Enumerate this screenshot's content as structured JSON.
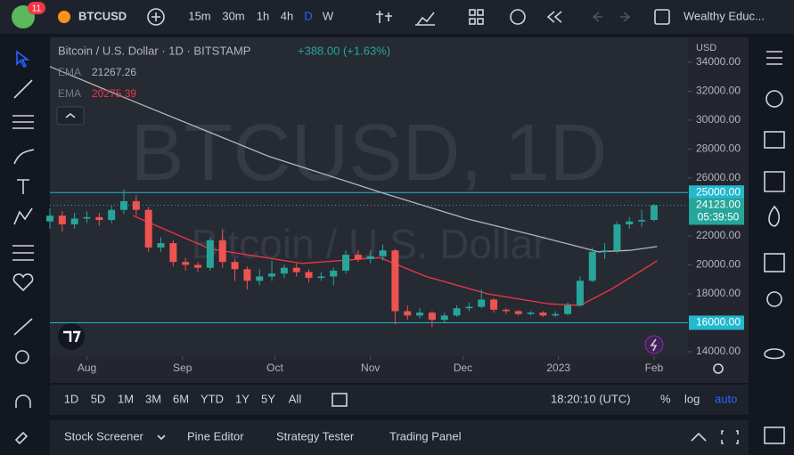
{
  "toolbar": {
    "badge": "11",
    "symbol": "BTCUSD",
    "intervals": [
      "15m",
      "30m",
      "1h",
      "4h",
      "D",
      "W"
    ],
    "account": "Wealthy Educ..."
  },
  "chart_data": {
    "type": "candlestick",
    "title": "Bitcoin / U.S. Dollar · 1D · BITSTAMP",
    "change": "+388.00 (+1.63%)",
    "watermark": [
      "BTCUSD, 1D",
      "Bitcoin / U.S. Dollar"
    ],
    "x": [
      -12,
      -8,
      -4,
      0,
      4,
      8,
      12,
      16,
      20,
      24,
      28,
      32,
      36,
      40,
      44,
      48,
      52,
      56,
      60,
      64,
      68,
      72,
      76,
      80,
      84,
      88,
      92,
      96,
      100,
      104,
      108,
      112,
      116,
      120,
      124,
      128,
      132,
      136,
      140,
      144,
      148,
      152,
      156,
      160,
      164,
      168,
      172,
      176,
      180,
      184
    ],
    "open": [
      23000,
      23400,
      22800,
      23200,
      23300,
      23100,
      23800,
      24400,
      23800,
      21200,
      21500,
      20200,
      20000,
      19800,
      21700,
      20200,
      19700,
      18900,
      19200,
      19400,
      19800,
      19500,
      19100,
      19200,
      19600,
      20700,
      20400,
      20600,
      21000,
      16800,
      16500,
      16700,
      16200,
      16500,
      17000,
      17100,
      17600,
      16900,
      16800,
      16600,
      16700,
      16500,
      16600,
      17200,
      18900,
      20900,
      21000,
      22800,
      23000,
      23100
    ],
    "high": [
      23900,
      23700,
      23600,
      23700,
      23600,
      24100,
      25200,
      24800,
      24000,
      21900,
      21700,
      20500,
      20200,
      21900,
      22400,
      20400,
      19900,
      19700,
      20300,
      20000,
      20100,
      19700,
      19500,
      19800,
      21000,
      21000,
      21000,
      21400,
      21100,
      17200,
      17000,
      16800,
      16700,
      17200,
      17400,
      18300,
      17700,
      17000,
      16900,
      16800,
      16800,
      16800,
      17400,
      19200,
      21200,
      21500,
      23000,
      23300,
      23800,
      24200
    ],
    "low": [
      22500,
      22300,
      22500,
      22900,
      22700,
      22900,
      23500,
      23400,
      20900,
      20900,
      19900,
      19600,
      19500,
      19600,
      19800,
      18900,
      18300,
      18600,
      18900,
      19100,
      19200,
      18800,
      18900,
      18600,
      19400,
      20200,
      20100,
      20300,
      15900,
      16200,
      16300,
      15700,
      16000,
      16400,
      16800,
      17000,
      16700,
      16600,
      16500,
      16500,
      16400,
      16400,
      16500,
      17100,
      18800,
      20400,
      20800,
      22500,
      22600,
      23000
    ],
    "close": [
      23400,
      22800,
      23200,
      23300,
      23100,
      23800,
      24400,
      23800,
      21200,
      21500,
      20200,
      20000,
      19800,
      21700,
      20200,
      19700,
      18900,
      19200,
      19400,
      19800,
      19500,
      19100,
      19200,
      19600,
      20700,
      20400,
      20600,
      21000,
      16800,
      16500,
      16700,
      16200,
      16500,
      17000,
      17100,
      17600,
      16900,
      16800,
      16600,
      16700,
      16500,
      16600,
      17200,
      18900,
      20900,
      21000,
      22800,
      23000,
      23100,
      24123
    ],
    "up_color": "#26a69a",
    "down_color": "#ef5350",
    "overlays": [
      {
        "name": "EMA",
        "color": "#b2b5be",
        "last_value": 21267.26,
        "x": [
          -12,
          14,
          59,
          97,
          123,
          146,
          166,
          176,
          185
        ],
        "values": [
          33700,
          31400,
          27500,
          24900,
          23200,
          22000,
          20900,
          21000,
          21267.26
        ]
      },
      {
        "name": "EMA",
        "color": "#f23645",
        "last_value": 20275.39,
        "x": [
          15,
          40,
          70,
          95,
          110,
          130,
          150,
          160,
          170,
          185
        ],
        "values": [
          23400,
          21100,
          20100,
          20500,
          19200,
          18000,
          17300,
          17200,
          18300,
          20275.39
        ]
      }
    ],
    "hlines": [
      {
        "value": 25000,
        "label": "25000.00",
        "color": "#22b8cf"
      },
      {
        "value": 16000,
        "label": "16000.00",
        "color": "#22b8cf"
      }
    ],
    "last_price": {
      "value": 24123,
      "label": "24123.00"
    },
    "countdown": "05:39:50",
    "y_axis_unit": "USD",
    "xlim": [
      -12,
      195
    ],
    "xticks": [
      {
        "value": 0,
        "label": "Aug"
      },
      {
        "value": 31,
        "label": "Sep"
      },
      {
        "value": 61,
        "label": "Oct"
      },
      {
        "value": 92,
        "label": "Nov"
      },
      {
        "value": 122,
        "label": "Dec"
      },
      {
        "value": 153,
        "label": "2023"
      },
      {
        "value": 184,
        "label": "Feb"
      }
    ],
    "ylim": [
      13690,
      35720
    ],
    "yticks": [
      {
        "value": 14000,
        "label": "14000.00"
      },
      {
        "value": 18000,
        "label": "18000.00"
      },
      {
        "value": 20000,
        "label": "20000.00"
      },
      {
        "value": 22000,
        "label": "22000.00"
      },
      {
        "value": 26000,
        "label": "26000.00"
      },
      {
        "value": 28000,
        "label": "28000.00"
      },
      {
        "value": 30000,
        "label": "30000.00"
      },
      {
        "value": 32000,
        "label": "32000.00"
      },
      {
        "value": 34000,
        "label": "34000.00"
      }
    ]
  },
  "range_bar": {
    "ranges": [
      "1D",
      "5D",
      "1M",
      "3M",
      "6M",
      "YTD",
      "1Y",
      "5Y",
      "All"
    ],
    "clock": "18:20:10 (UTC)",
    "percent": "%",
    "log": "log",
    "auto": "auto"
  },
  "footer": {
    "tabs": [
      "Stock Screener",
      "Pine Editor",
      "Strategy Tester",
      "Trading Panel"
    ]
  }
}
